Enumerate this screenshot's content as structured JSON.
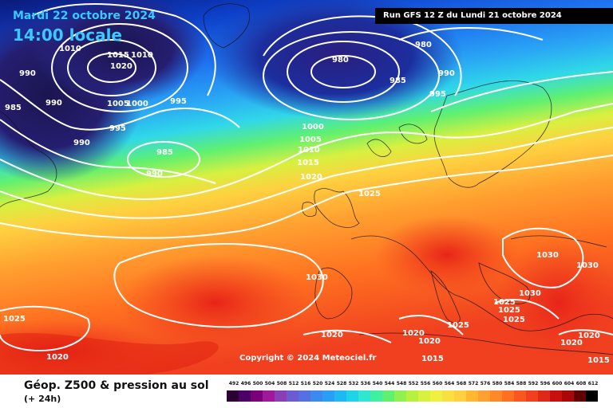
{
  "header": {
    "date": "Mardi 22 octobre 2024",
    "time": "14:00 locale",
    "run": "Run GFS 12 Z du Lundi 21 octobre 2024"
  },
  "copyright": "Copyright © 2024 Meteociel.fr",
  "product": {
    "title": "Géop. Z500 & pression au sol",
    "subtitle": "(+ 24h)"
  },
  "pressure_labels": [
    "1010",
    "1015",
    "1010",
    "1020",
    "990",
    "990",
    "985",
    "1005",
    "1000",
    "995",
    "995",
    "990",
    "985",
    "990",
    "980",
    "985",
    "980",
    "990",
    "995",
    "1000",
    "1005",
    "1010",
    "1015",
    "1020",
    "1025",
    "1030",
    "1030",
    "1030",
    "1025",
    "1030",
    "1025",
    "1025",
    "1025",
    "1020",
    "1020",
    "1020",
    "1015",
    "1020",
    "1020",
    "1015",
    "1025",
    "1020"
  ],
  "legend": {
    "values": [
      "492",
      "496",
      "500",
      "504",
      "508",
      "512",
      "516",
      "520",
      "524",
      "528",
      "532",
      "536",
      "540",
      "544",
      "548",
      "552",
      "556",
      "560",
      "564",
      "568",
      "572",
      "576",
      "580",
      "584",
      "588",
      "592",
      "596",
      "600",
      "604",
      "608",
      "612"
    ],
    "colors": [
      "#2b0033",
      "#4d0066",
      "#7a007a",
      "#a0199a",
      "#8a3fb5",
      "#6b5cd0",
      "#5570e0",
      "#3c8af0",
      "#2a9ef5",
      "#20b8f2",
      "#20d4e8",
      "#30e6d0",
      "#40f0a0",
      "#60f070",
      "#90f050",
      "#b8f040",
      "#d8f040",
      "#f0f040",
      "#f8e040",
      "#ffd040",
      "#ffb830",
      "#ffa030",
      "#ff8828",
      "#ff7020",
      "#f85820",
      "#f04020",
      "#e02818",
      "#c81010",
      "#a80808",
      "#600000",
      "#000000"
    ]
  }
}
